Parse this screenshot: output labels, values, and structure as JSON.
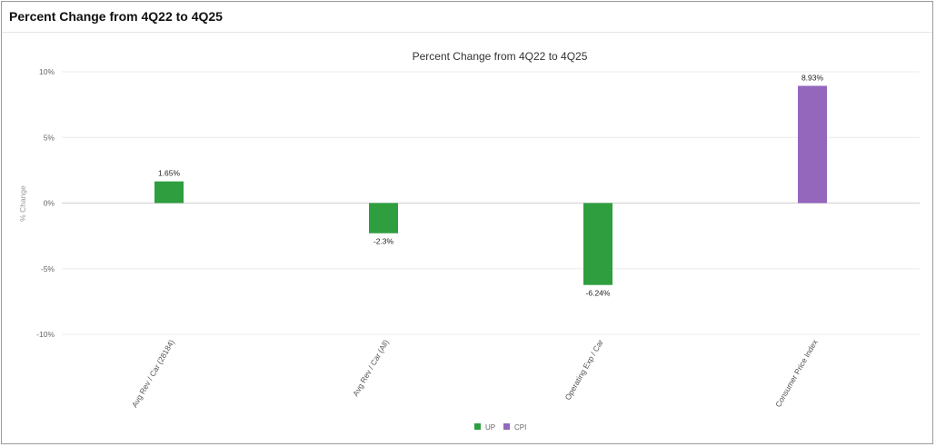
{
  "card": {
    "title": "Percent Change from 4Q22 to 4Q25"
  },
  "chart_data": {
    "type": "bar",
    "title": "Percent Change from 4Q22 to 4Q25",
    "xlabel": "",
    "ylabel": "% Change",
    "ylim": [
      -10,
      10
    ],
    "yticks": [
      10,
      5,
      0,
      -5,
      -10
    ],
    "ytick_labels": [
      "10%",
      "5%",
      "0%",
      "-5%",
      "-10%"
    ],
    "grid": true,
    "legend_position": "bottom",
    "categories": [
      "Avg Rev / Car (28184)",
      "Avg Rev / Car (All)",
      "Operating Exp / Car",
      "Consumer Price Index"
    ],
    "values": [
      1.65,
      -2.3,
      -6.24,
      8.93
    ],
    "data_labels": [
      "1.65%",
      "-2.3%",
      "-6.24%",
      "8.93%"
    ],
    "bar_series": [
      "UP",
      "UP",
      "UP",
      "CPI"
    ],
    "series": [
      {
        "name": "UP",
        "color": "#2e9e3f"
      },
      {
        "name": "CPI",
        "color": "#9467bd"
      }
    ]
  }
}
